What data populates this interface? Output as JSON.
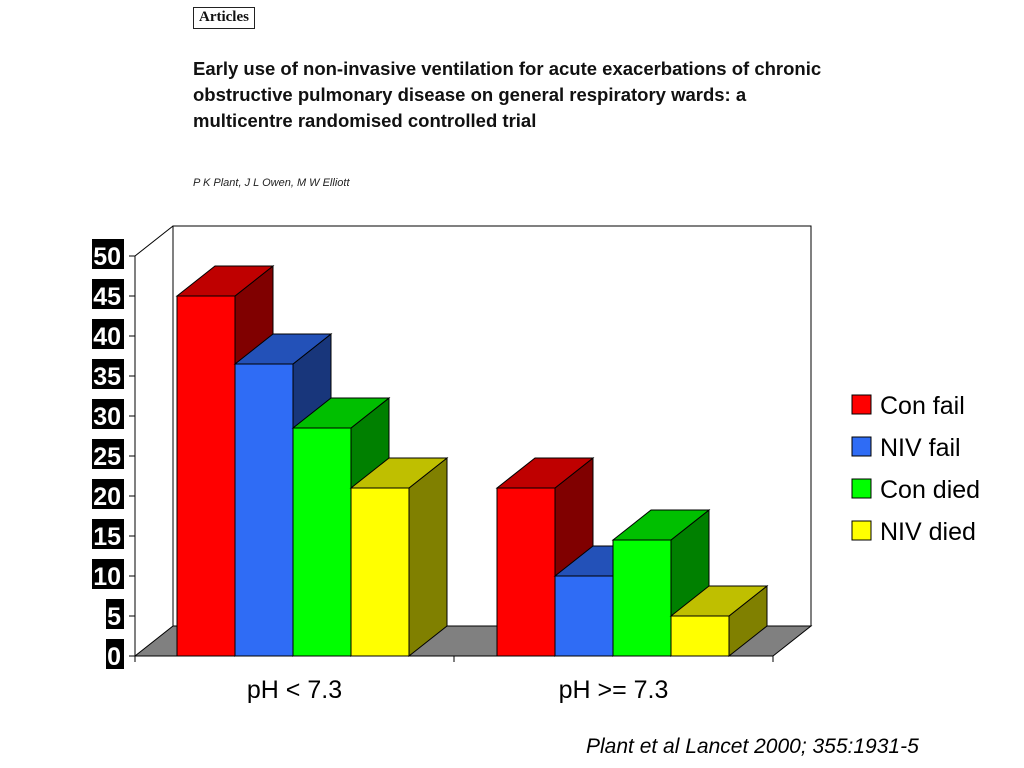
{
  "header": {
    "section": "Articles",
    "title": "Early use of non-invasive ventilation for acute exacerbations of chronic obstructive pulmonary disease on general respiratory wards: a multicentre randomised controlled trial",
    "authors": "P K Plant, J L Owen, M W Elliott"
  },
  "footer": {
    "citation": "Plant et al Lancet 2000; 355:1931-5"
  },
  "chart_data": {
    "type": "bar",
    "style": "3d-clustered",
    "categories": [
      "pH < 7.3",
      "pH >= 7.3"
    ],
    "series": [
      {
        "name": "Con fail",
        "values": [
          45,
          21
        ],
        "color": "#ff0000"
      },
      {
        "name": "NIV fail",
        "values": [
          36.5,
          10
        ],
        "color": "#2f6cf5"
      },
      {
        "name": "Con died",
        "values": [
          28.5,
          14.5
        ],
        "color": "#00ff00"
      },
      {
        "name": "NIV died",
        "values": [
          21,
          5
        ],
        "color": "#ffff00"
      }
    ],
    "yticks": [
      "0",
      "5",
      "10",
      "15",
      "20",
      "25",
      "30",
      "35",
      "40",
      "45",
      "50"
    ],
    "ylim": [
      0,
      50
    ],
    "grid": false,
    "legend_position": "right"
  }
}
